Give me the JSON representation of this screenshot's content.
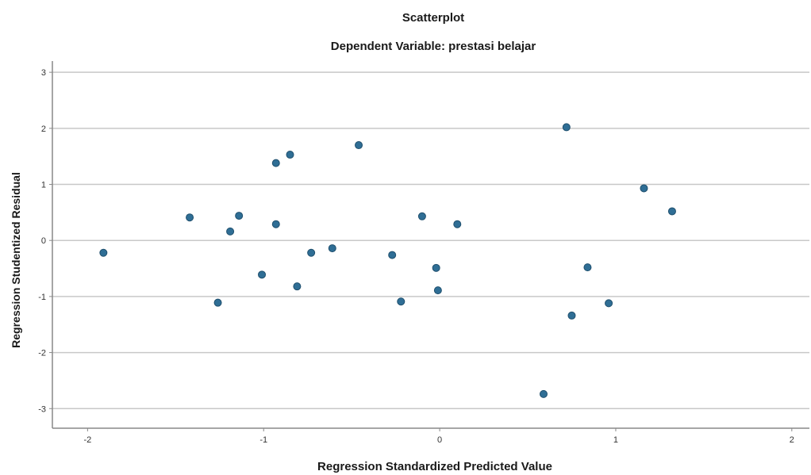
{
  "chart_data": {
    "type": "scatter",
    "title": "Scatterplot",
    "subtitle": "Dependent Variable: prestasi belajar",
    "xlabel": "Regression Standardized Predicted Value",
    "ylabel": "Regression Studentized Residual",
    "xlim": [
      -2.2,
      2.1
    ],
    "ylim": [
      -3.35,
      3.2
    ],
    "xticks": [
      -2,
      -1,
      0,
      1,
      2
    ],
    "yticks": [
      -3,
      -2,
      -1,
      0,
      1,
      2,
      3
    ],
    "grid": "horizontal",
    "point_color": "#2f6e95",
    "points": [
      {
        "x": -1.91,
        "y": -0.22
      },
      {
        "x": -1.42,
        "y": 0.41
      },
      {
        "x": -1.26,
        "y": -1.11
      },
      {
        "x": -1.19,
        "y": 0.16
      },
      {
        "x": -1.14,
        "y": 0.44
      },
      {
        "x": -1.01,
        "y": -0.61
      },
      {
        "x": -0.93,
        "y": 1.38
      },
      {
        "x": -0.93,
        "y": 0.29
      },
      {
        "x": -0.85,
        "y": 1.53
      },
      {
        "x": -0.81,
        "y": -0.82
      },
      {
        "x": -0.73,
        "y": -0.22
      },
      {
        "x": -0.61,
        "y": -0.14
      },
      {
        "x": -0.46,
        "y": 1.7
      },
      {
        "x": -0.27,
        "y": -0.26
      },
      {
        "x": -0.22,
        "y": -1.09
      },
      {
        "x": -0.1,
        "y": 0.43
      },
      {
        "x": -0.02,
        "y": -0.49
      },
      {
        "x": -0.01,
        "y": -0.89
      },
      {
        "x": 0.1,
        "y": 0.29
      },
      {
        "x": 0.59,
        "y": -2.74
      },
      {
        "x": 0.72,
        "y": 2.02
      },
      {
        "x": 0.75,
        "y": -1.34
      },
      {
        "x": 0.84,
        "y": -0.48
      },
      {
        "x": 0.96,
        "y": -1.12
      },
      {
        "x": 1.16,
        "y": 0.93
      },
      {
        "x": 1.32,
        "y": 0.52
      }
    ]
  }
}
